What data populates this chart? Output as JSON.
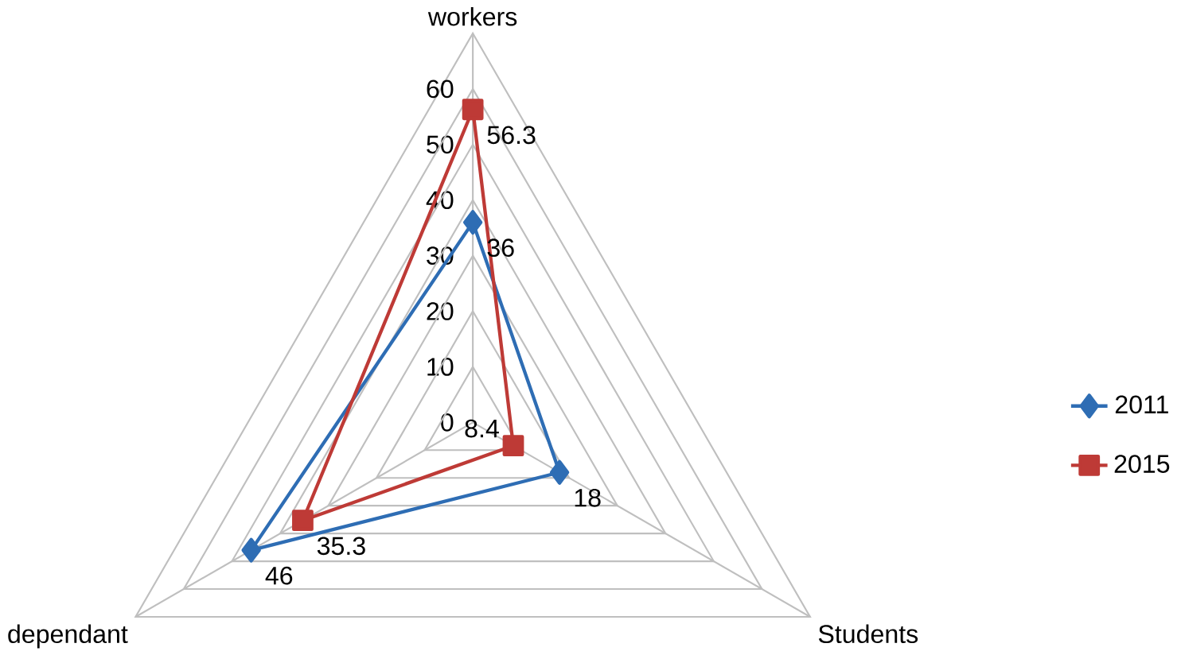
{
  "chart_data": {
    "type": "radar",
    "categories": [
      "workers",
      "Students",
      "dependant"
    ],
    "series": [
      {
        "name": "2011",
        "color": "#2e6db4",
        "marker": "diamond",
        "values": [
          36,
          18,
          46
        ]
      },
      {
        "name": "2015",
        "color": "#be3a36",
        "marker": "square",
        "values": [
          56.3,
          8.4,
          35.3
        ]
      }
    ],
    "ylim": [
      0,
      70
    ],
    "yticks": [
      0,
      10,
      20,
      30,
      40,
      50,
      60
    ],
    "grid": true,
    "legend": "right",
    "data_labels": true,
    "line_style": "solid"
  }
}
